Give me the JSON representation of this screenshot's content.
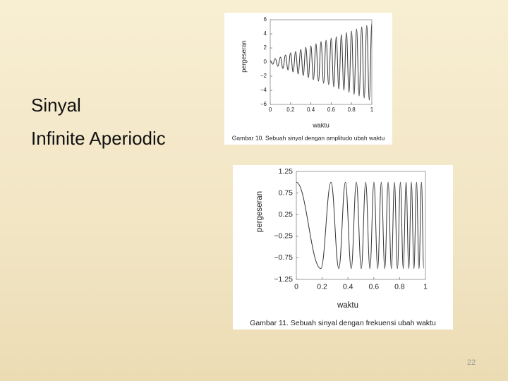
{
  "slide": {
    "title_lines": [
      "Sinyal",
      "Infinite Aperiodic"
    ],
    "page_number": 22
  },
  "chart_data": [
    {
      "type": "line",
      "ylabel": "pergeseran",
      "xlabel": "waktu",
      "caption": "Gambar 10. Sebuah sinyal dengan amplitudo ubah waktu",
      "xlim": [
        0,
        1
      ],
      "ylim": [
        -6,
        6
      ],
      "xticks": [
        0,
        0.2,
        0.4,
        0.6,
        0.8,
        1
      ],
      "yticks": [
        {
          "value": -6,
          "label": "−6"
        },
        {
          "value": -4,
          "label": "−4"
        },
        {
          "value": -2,
          "label": "−2"
        },
        0,
        2,
        4,
        6
      ],
      "color": "#333333",
      "x": [
        0,
        0.025,
        0.05,
        0.075,
        0.1,
        0.125,
        0.15,
        0.175,
        0.2,
        0.225,
        0.25,
        0.275,
        0.3,
        0.325,
        0.35,
        0.375,
        0.4,
        0.425,
        0.45,
        0.475,
        0.5,
        0.525,
        0.55,
        0.575,
        0.6,
        0.625,
        0.65,
        0.675,
        0.7,
        0.725,
        0.75,
        0.775,
        0.8,
        0.825,
        0.85,
        0.875,
        0.9,
        0.925,
        0.95,
        0.975,
        1
      ],
      "values": [
        0.2,
        -0.3,
        0.5,
        -0.6,
        0.7,
        -0.9,
        1.0,
        -1.1,
        1.3,
        -1.4,
        1.5,
        -1.7,
        1.8,
        -1.9,
        2.1,
        -2.2,
        2.3,
        -2.5,
        2.6,
        -2.7,
        2.9,
        -3.0,
        3.1,
        -3.2,
        3.4,
        -3.5,
        3.6,
        -3.8,
        3.9,
        -4.0,
        4.2,
        -4.3,
        4.4,
        -4.6,
        4.7,
        -4.8,
        5.0,
        -5.1,
        5.2,
        -5.4,
        5.5
      ]
    },
    {
      "type": "line",
      "ylabel": "pergeseran",
      "xlabel": "waktu",
      "caption": "Gambar 11. Sebuah sinyal dengan frekuensi ubah waktu",
      "xlim": [
        0,
        1
      ],
      "ylim": [
        -1.25,
        1.25
      ],
      "xticks": [
        0,
        0.2,
        0.4,
        0.6,
        0.8,
        1
      ],
      "yticks": [
        {
          "value": -1.25,
          "label": "−1.25"
        },
        {
          "value": -0.75,
          "label": "−0.75"
        },
        {
          "value": -0.25,
          "label": "−0.25"
        },
        0.25,
        0.75,
        1.25
      ],
      "color": "#333333",
      "x": [
        0,
        0.19,
        0.269,
        0.329,
        0.38,
        0.425,
        0.465,
        0.503,
        0.537,
        0.57,
        0.601,
        0.63,
        0.658,
        0.685,
        0.711,
        0.736,
        0.76,
        0.783,
        0.806,
        0.828,
        0.85,
        0.871,
        0.891,
        0.911,
        0.931,
        0.95,
        0.969,
        0.987
      ],
      "values": [
        1,
        -1,
        1,
        -1,
        1,
        -1,
        1,
        -1,
        1,
        -1,
        1,
        -1,
        1,
        -1,
        1,
        -1,
        1,
        -1,
        1,
        -1,
        1,
        -1,
        1,
        -1,
        1,
        -1,
        1,
        -1
      ]
    }
  ]
}
